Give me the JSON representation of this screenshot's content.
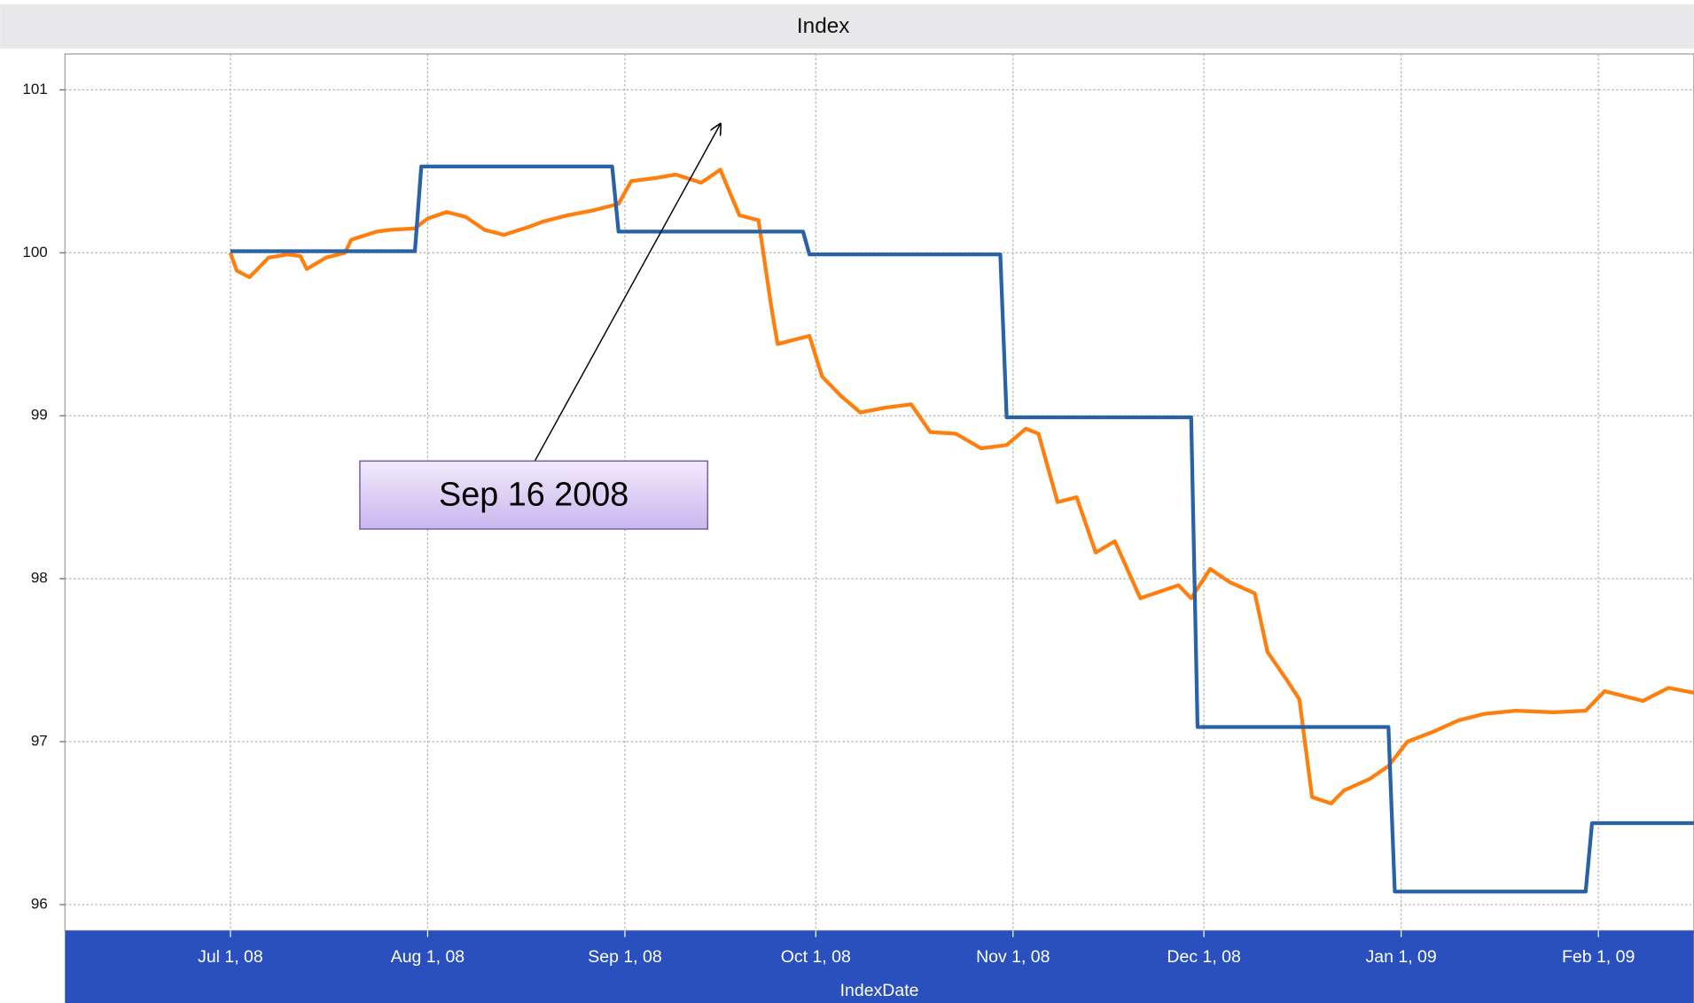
{
  "chart_data": {
    "type": "line",
    "title": "Index",
    "x_label": "IndexDate",
    "xlim": [
      "2008-06-05",
      "2009-02-16"
    ],
    "xticks": [
      {
        "value": "2008-07-01",
        "label": "Jul 1, 08"
      },
      {
        "value": "2008-08-01",
        "label": "Aug 1, 08"
      },
      {
        "value": "2008-09-01",
        "label": "Sep 1, 08"
      },
      {
        "value": "2008-10-01",
        "label": "Oct 1, 08"
      },
      {
        "value": "2008-11-01",
        "label": "Nov 1, 08"
      },
      {
        "value": "2008-12-01",
        "label": "Dec 1, 08"
      },
      {
        "value": "2009-01-01",
        "label": "Jan 1, 09"
      },
      {
        "value": "2009-02-01",
        "label": "Feb 1, 09"
      }
    ],
    "ylim": [
      95.84,
      101.22
    ],
    "yticks": [
      96,
      97,
      98,
      99,
      100,
      101
    ],
    "grid": true,
    "series": [
      {
        "color": "#ff7f0e",
        "x": [
          "2008-07-01",
          "2008-07-02",
          "2008-07-04",
          "2008-07-07",
          "2008-07-10",
          "2008-07-12",
          "2008-07-13",
          "2008-07-16",
          "2008-07-19",
          "2008-07-20",
          "2008-07-24",
          "2008-07-26",
          "2008-07-30",
          "2008-08-01",
          "2008-08-04",
          "2008-08-07",
          "2008-08-10",
          "2008-08-13",
          "2008-08-17",
          "2008-08-19",
          "2008-08-23",
          "2008-08-27",
          "2008-08-31",
          "2008-09-02",
          "2008-09-06",
          "2008-09-09",
          "2008-09-13",
          "2008-09-16",
          "2008-09-19",
          "2008-09-22",
          "2008-09-24",
          "2008-09-25",
          "2008-09-30",
          "2008-10-02",
          "2008-10-05",
          "2008-10-08",
          "2008-10-12",
          "2008-10-16",
          "2008-10-19",
          "2008-10-23",
          "2008-10-27",
          "2008-10-31",
          "2008-11-03",
          "2008-11-05",
          "2008-11-08",
          "2008-11-11",
          "2008-11-14",
          "2008-11-17",
          "2008-11-21",
          "2008-11-24",
          "2008-11-27",
          "2008-11-29",
          "2008-12-02",
          "2008-12-05",
          "2008-12-09",
          "2008-12-11",
          "2008-12-14",
          "2008-12-16",
          "2008-12-18",
          "2008-12-21",
          "2008-12-23",
          "2008-12-27",
          "2008-12-30",
          "2009-01-02",
          "2009-01-06",
          "2009-01-10",
          "2009-01-14",
          "2009-01-19",
          "2009-01-25",
          "2009-01-30",
          "2009-02-02",
          "2009-02-08",
          "2009-02-12",
          "2009-02-16"
        ],
        "values": [
          100.0,
          99.89,
          99.85,
          99.97,
          99.99,
          99.98,
          99.9,
          99.97,
          100.0,
          100.08,
          100.13,
          100.14,
          100.15,
          100.21,
          100.25,
          100.22,
          100.14,
          100.11,
          100.16,
          100.19,
          100.23,
          100.26,
          100.3,
          100.44,
          100.46,
          100.48,
          100.43,
          100.51,
          100.23,
          100.2,
          99.67,
          99.44,
          99.49,
          99.24,
          99.12,
          99.02,
          99.05,
          99.07,
          98.9,
          98.89,
          98.8,
          98.82,
          98.92,
          98.89,
          98.47,
          98.5,
          98.16,
          98.23,
          97.88,
          97.92,
          97.96,
          97.88,
          98.06,
          97.98,
          97.91,
          97.55,
          97.38,
          97.26,
          96.66,
          96.62,
          96.7,
          96.77,
          96.85,
          97.0,
          97.06,
          97.13,
          97.17,
          97.19,
          97.18,
          97.19,
          97.31,
          97.25,
          97.33,
          97.3
        ]
      },
      {
        "color": "#2a62a8",
        "x": [
          "2008-07-01",
          "2008-07-30",
          "2008-07-31",
          "2008-08-30",
          "2008-08-31",
          "2008-09-29",
          "2008-09-30",
          "2008-10-30",
          "2008-10-31",
          "2008-11-29",
          "2008-11-30",
          "2008-12-30",
          "2008-12-31",
          "2009-01-30",
          "2009-01-31",
          "2009-02-16"
        ],
        "values": [
          100.01,
          100.01,
          100.53,
          100.53,
          100.13,
          100.13,
          99.99,
          99.99,
          98.99,
          98.99,
          97.09,
          97.09,
          96.08,
          96.08,
          96.5,
          96.5
        ]
      }
    ],
    "annotation": {
      "text": "Sep 16 2008",
      "x": "2008-09-16",
      "y": 100.79
    }
  }
}
